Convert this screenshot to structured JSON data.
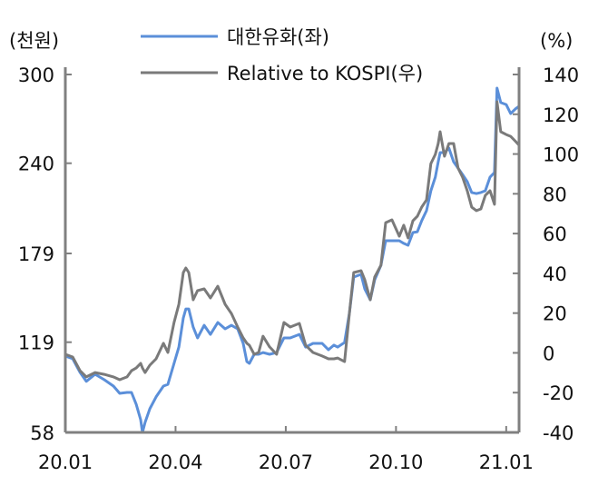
{
  "chart_data": {
    "type": "line",
    "title": "",
    "left_unit": "(천원)",
    "right_unit": "(%)",
    "legend_position": "top-center",
    "x_ticks": [
      "20.01",
      "20.04",
      "20.07",
      "20.10",
      "21.01"
    ],
    "x_tick_months": [
      0,
      3,
      6,
      9,
      12
    ],
    "xlim": [
      0,
      12.35
    ],
    "y_left": {
      "ticks": [
        300,
        240,
        179,
        119,
        58
      ],
      "ylim": [
        58,
        300
      ]
    },
    "y_right": {
      "ticks": [
        140,
        120,
        100,
        80,
        60,
        40,
        20,
        0,
        -20,
        -40
      ],
      "ylim": [
        -40,
        140
      ]
    },
    "x": [
      0,
      0.2,
      0.4,
      0.57,
      0.81,
      1.06,
      1.31,
      1.48,
      1.68,
      1.8,
      1.93,
      2.05,
      2.1,
      2.17,
      2.3,
      2.47,
      2.67,
      2.79,
      2.96,
      3.09,
      3.21,
      3.28,
      3.36,
      3.48,
      3.6,
      3.78,
      3.95,
      4.15,
      4.35,
      4.52,
      4.69,
      4.84,
      4.94,
      5.01,
      5.14,
      5.26,
      5.38,
      5.56,
      5.75,
      5.95,
      6.12,
      6.37,
      6.54,
      6.74,
      6.99,
      7.16,
      7.31,
      7.41,
      7.6,
      7.73,
      7.85,
      8.05,
      8.15,
      8.3,
      8.42,
      8.59,
      8.72,
      8.89,
      9.09,
      9.21,
      9.33,
      9.46,
      9.58,
      9.7,
      9.83,
      9.95,
      10.07,
      10.15,
      10.2,
      10.32,
      10.44,
      10.57,
      10.69,
      10.81,
      10.94,
      11.06,
      11.19,
      11.31,
      11.43,
      11.56,
      11.68,
      11.75,
      11.85,
      12.0,
      12.12,
      12.25,
      12.35
    ],
    "series": [
      {
        "name": "대한유화(좌)",
        "axis": "left",
        "color": "#5b8fd9",
        "values": [
          109.6,
          107.8,
          98.6,
          92.5,
          97.3,
          93.6,
          89.3,
          84.4,
          85.0,
          85.0,
          77.0,
          66.6,
          58.0,
          64.8,
          74.0,
          82.0,
          89.3,
          90.5,
          104.7,
          115.7,
          135.4,
          141.5,
          141.5,
          129.2,
          121.9,
          130.4,
          124.3,
          132.3,
          128.0,
          130.4,
          128.0,
          118.2,
          105.9,
          104.7,
          110.8,
          110.8,
          112.0,
          110.8,
          112.0,
          121.9,
          121.9,
          124.3,
          115.7,
          118.2,
          118.2,
          113.9,
          117.0,
          115.7,
          118.8,
          138.5,
          163.0,
          164.9,
          155.0,
          147.7,
          161.2,
          171.0,
          187.6,
          187.6,
          187.6,
          185.8,
          184.5,
          193.1,
          193.7,
          201.1,
          207.9,
          221.4,
          230.6,
          241.0,
          247.2,
          247.2,
          250.2,
          241.0,
          236.7,
          232.4,
          227.5,
          220.2,
          219.5,
          220.2,
          221.4,
          230.6,
          233.7,
          290.8,
          281.0,
          279.7,
          273.6,
          276.7,
          278.5
        ]
      },
      {
        "name": "Relative to KOSPI(우)",
        "axis": "right",
        "color": "#7a7a7a",
        "values": [
          -0.7,
          -2.1,
          -9.0,
          -12.1,
          -9.9,
          -10.8,
          -12.1,
          -13.5,
          -12.1,
          -9.0,
          -7.6,
          -5.3,
          -7.6,
          -9.9,
          -6.2,
          -3.0,
          4.8,
          0.2,
          15.3,
          24.4,
          40.4,
          42.7,
          40.4,
          26.7,
          31.3,
          32.2,
          27.6,
          33.5,
          24.4,
          19.8,
          13.0,
          7.5,
          4.8,
          3.8,
          -0.7,
          0.2,
          8.4,
          3.0,
          -0.7,
          15.3,
          13.0,
          14.8,
          3.8,
          0.2,
          -1.6,
          -3.0,
          -3.0,
          -2.6,
          -4.4,
          19.8,
          40.4,
          41.3,
          36.7,
          26.7,
          38.1,
          44.1,
          65.5,
          66.9,
          58.7,
          64.2,
          57.8,
          66.4,
          68.7,
          73.3,
          76.9,
          95.2,
          99.8,
          105.3,
          111.2,
          98.9,
          105.3,
          105.3,
          92.9,
          88.4,
          81.5,
          73.3,
          71.5,
          72.4,
          79.2,
          81.5,
          74.7,
          126.3,
          111.2,
          109.8,
          108.9,
          106.4,
          104.4
        ]
      }
    ]
  }
}
